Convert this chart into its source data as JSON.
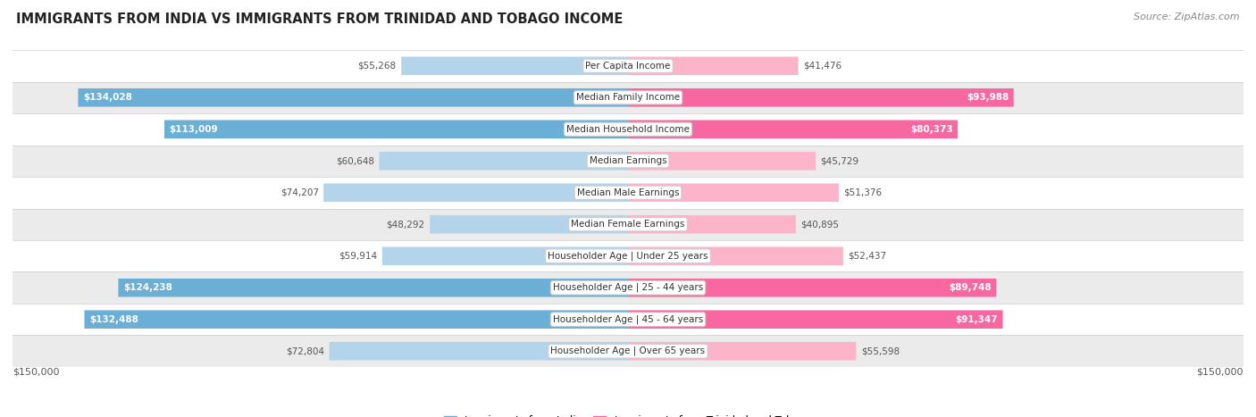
{
  "title": "IMMIGRANTS FROM INDIA VS IMMIGRANTS FROM TRINIDAD AND TOBAGO INCOME",
  "source": "Source: ZipAtlas.com",
  "categories": [
    "Per Capita Income",
    "Median Family Income",
    "Median Household Income",
    "Median Earnings",
    "Median Male Earnings",
    "Median Female Earnings",
    "Householder Age | Under 25 years",
    "Householder Age | 25 - 44 years",
    "Householder Age | 45 - 64 years",
    "Householder Age | Over 65 years"
  ],
  "india_values": [
    55268,
    134028,
    113009,
    60648,
    74207,
    48292,
    59914,
    124238,
    132488,
    72804
  ],
  "tt_values": [
    41476,
    93988,
    80373,
    45729,
    51376,
    40895,
    52437,
    89748,
    91347,
    55598
  ],
  "india_labels": [
    "$55,268",
    "$134,028",
    "$113,009",
    "$60,648",
    "$74,207",
    "$48,292",
    "$59,914",
    "$124,238",
    "$132,488",
    "$72,804"
  ],
  "tt_labels": [
    "$41,476",
    "$93,988",
    "$80,373",
    "$45,729",
    "$51,376",
    "$40,895",
    "$52,437",
    "$89,748",
    "$91,347",
    "$55,598"
  ],
  "india_color": "#6baed6",
  "tt_color": "#f768a1",
  "india_color_light": "#b3d4eb",
  "tt_color_light": "#fbb4c9",
  "india_inside_threshold": 100000,
  "tt_inside_threshold": 80000,
  "max_value": 150000,
  "bg_color": "#ffffff",
  "row_colors": [
    "#ffffff",
    "#ebebeb",
    "#ffffff",
    "#ebebeb",
    "#ffffff",
    "#ebebeb",
    "#ffffff",
    "#ebebeb",
    "#ffffff",
    "#ebebeb"
  ],
  "legend_india": "Immigrants from India",
  "legend_tt": "Immigrants from Trinidad and Tobago",
  "xlabel_left": "$150,000",
  "xlabel_right": "$150,000",
  "outside_label_color": "#555555",
  "inside_label_color": "#ffffff"
}
